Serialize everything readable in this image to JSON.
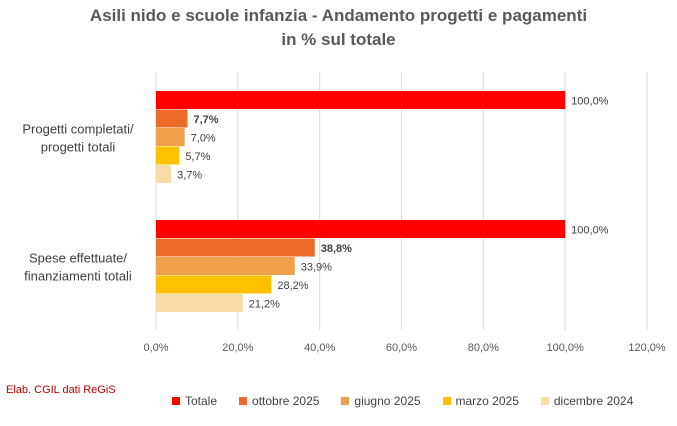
{
  "chart_data": {
    "type": "bar",
    "orientation": "horizontal",
    "title": "Asili nido e scuole infanzia - Andamento progetti e pagamenti",
    "subtitle": "in % sul totale",
    "categories": [
      "Progetti completati/\nprogetti totali",
      "Spese effettuate/\nfinanziamenti totali"
    ],
    "series": [
      {
        "name": "Totale",
        "color": "#ff0000",
        "values": [
          100.0,
          100.0
        ],
        "labels": [
          "100,0%",
          "100,0%"
        ],
        "bold": false
      },
      {
        "name": "ottobre 2025",
        "color": "#ed6b2a",
        "values": [
          7.7,
          38.8
        ],
        "labels": [
          "7,7%",
          "38,8%"
        ],
        "bold": true
      },
      {
        "name": "giugno 2025",
        "color": "#f0a04a",
        "values": [
          7.0,
          33.9
        ],
        "labels": [
          "7,0%",
          "33,9%"
        ],
        "bold": false
      },
      {
        "name": "marzo 2025",
        "color": "#ffc000",
        "values": [
          5.7,
          28.2
        ],
        "labels": [
          "5,7%",
          "28,2%"
        ],
        "bold": false
      },
      {
        "name": "dicembre 2024",
        "color": "#f8dca8",
        "values": [
          3.7,
          21.2
        ],
        "labels": [
          "3,7%",
          "21,2%"
        ],
        "bold": false
      }
    ],
    "xlim": [
      0,
      120
    ],
    "xticks": [
      0,
      20,
      40,
      60,
      80,
      100,
      120
    ],
    "xtick_labels": [
      "0,0%",
      "20,0%",
      "40,0%",
      "60,0%",
      "80,0%",
      "100,0%",
      "120,0%"
    ],
    "grid": true,
    "legend_position": "bottom"
  },
  "source": "Elab. CGIL dati ReGiS"
}
